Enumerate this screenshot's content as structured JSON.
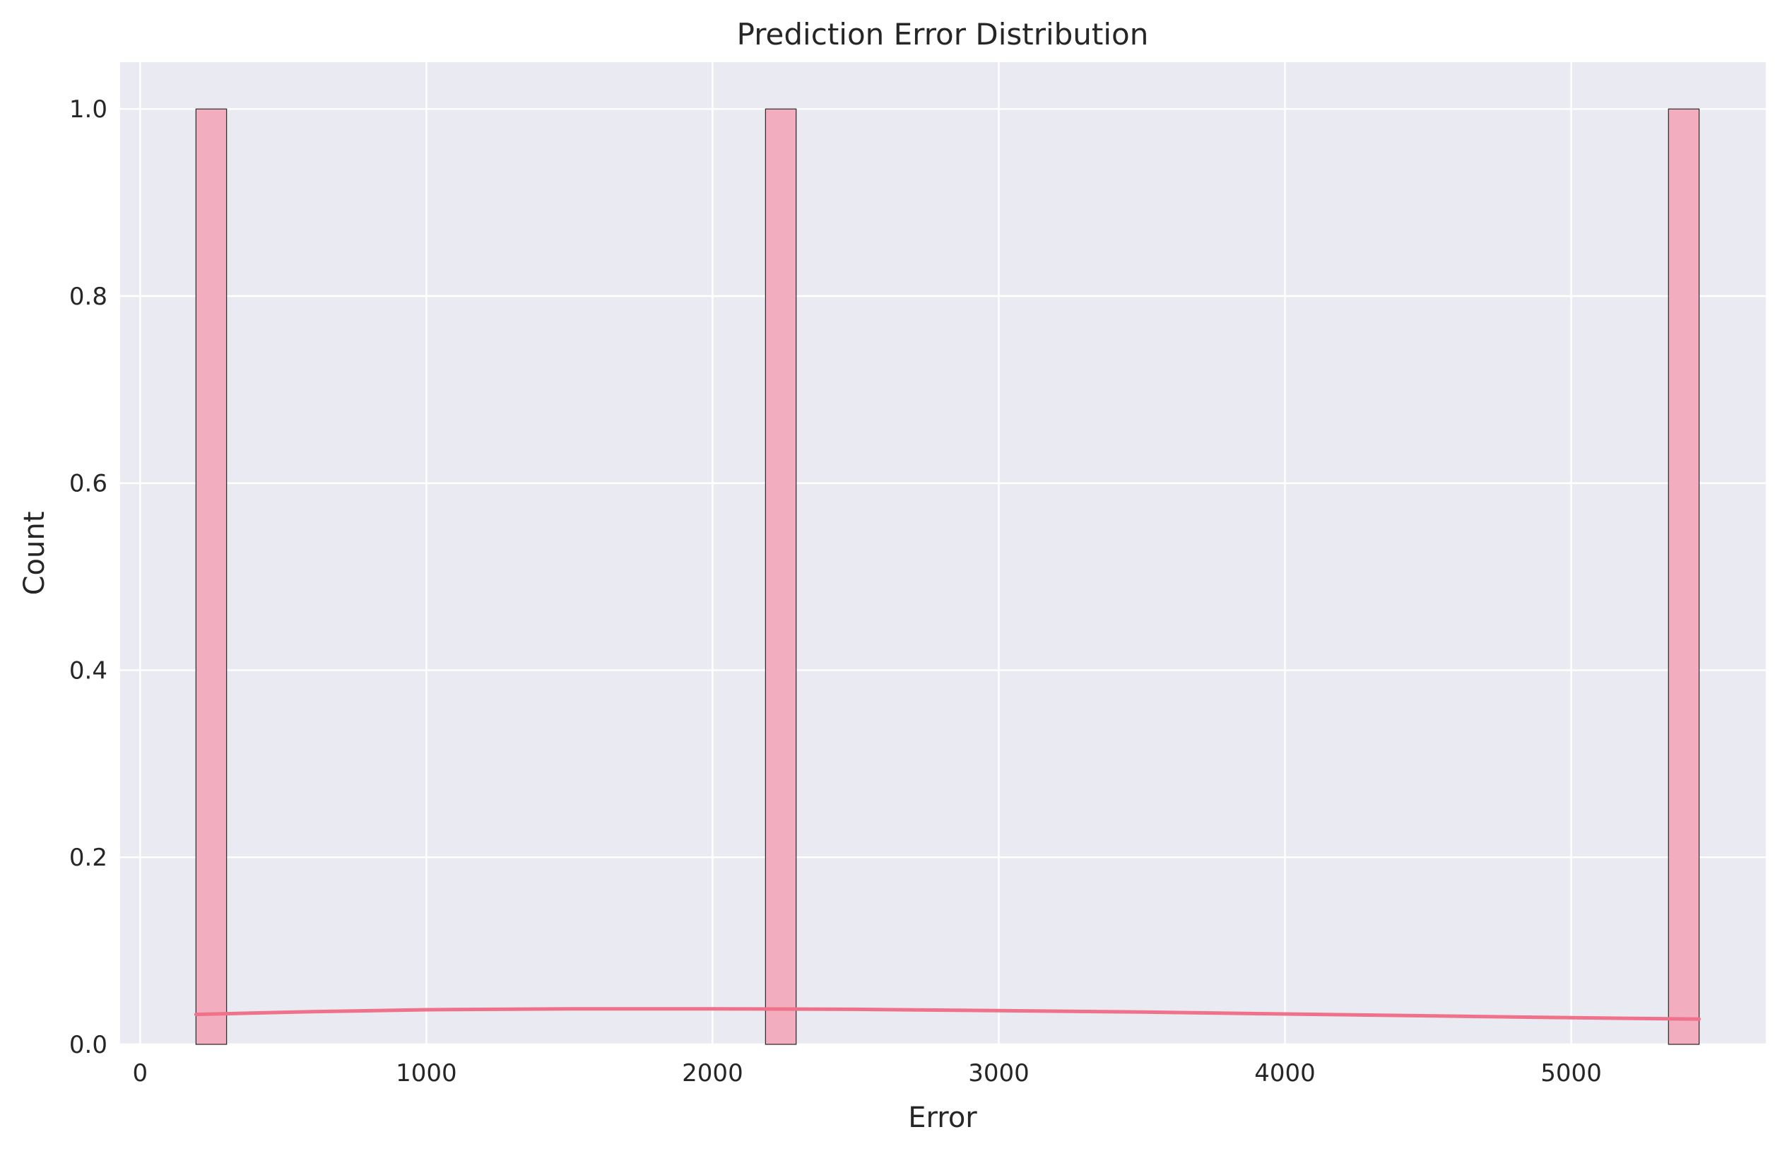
{
  "chart_data": {
    "type": "bar",
    "title": "Prediction Error Distribution",
    "xlabel": "Error",
    "ylabel": "Count",
    "xlim": [
      -70,
      5680
    ],
    "ylim": [
      0,
      1.05
    ],
    "x_ticks": [
      0,
      1000,
      2000,
      3000,
      4000,
      5000
    ],
    "x_tick_labels": [
      "0",
      "1000",
      "2000",
      "3000",
      "4000",
      "5000"
    ],
    "y_ticks": [
      0.0,
      0.2,
      0.4,
      0.6,
      0.8,
      1.0
    ],
    "y_tick_labels": [
      "0.0",
      "0.2",
      "0.4",
      "0.6",
      "0.8",
      "1.0"
    ],
    "grid": true,
    "bins": [
      {
        "x0": 195,
        "x1": 302,
        "count": 1
      },
      {
        "x0": 2185,
        "x1": 2292,
        "count": 1
      },
      {
        "x0": 5340,
        "x1": 5447,
        "count": 1
      }
    ],
    "kde": {
      "x": [
        195,
        600,
        1000,
        1500,
        2000,
        2500,
        3000,
        3500,
        4000,
        4500,
        5000,
        5447
      ],
      "y": [
        0.032,
        0.035,
        0.037,
        0.038,
        0.038,
        0.0375,
        0.036,
        0.0345,
        0.0325,
        0.0305,
        0.0285,
        0.027
      ]
    },
    "colors": {
      "background": "#eaeaf2",
      "grid": "#ffffff",
      "bar_fill": "#f2aebe",
      "bar_edge": "#262626",
      "kde_line": "#f0718a"
    }
  }
}
